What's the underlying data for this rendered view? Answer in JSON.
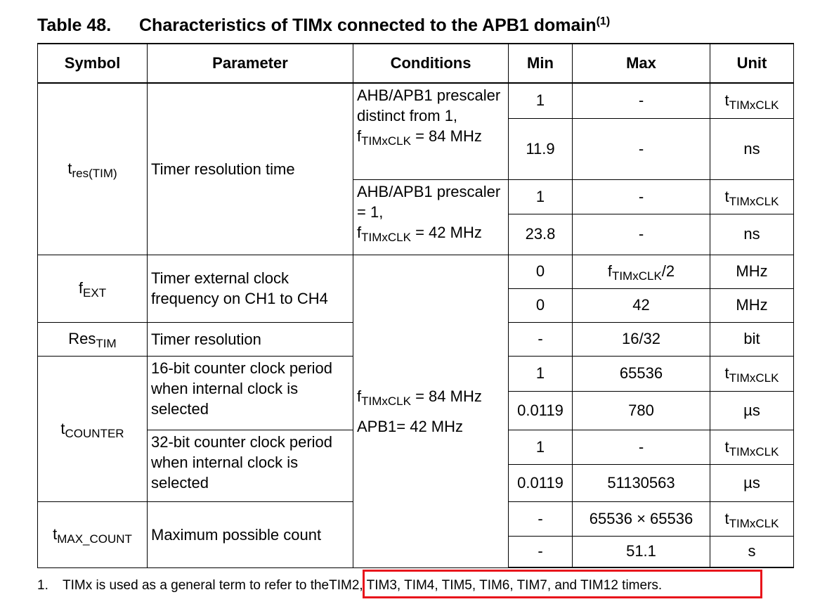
{
  "caption": {
    "number": "Table 48.",
    "title": "Characteristics of TIMx connected to the APB1 domain",
    "note_ref": "(1)"
  },
  "headers": {
    "symbol": "Symbol",
    "parameter": "Parameter",
    "conditions": "Conditions",
    "min": "Min",
    "max": "Max",
    "unit": "Unit"
  },
  "rows": {
    "tres": {
      "symbol": "t",
      "symbol_sub": "res(TIM)",
      "parameter": "Timer resolution time",
      "cond1_a": "AHB/APB1 prescaler distinct from 1, f",
      "cond1_sub": "TIMxCLK",
      "cond1_b": " = 84 MHz",
      "cond2_a": "AHB/APB1 prescaler = 1,",
      "cond2_f": "f",
      "cond2_sub": "TIMxCLK",
      "cond2_b": " = 42 MHz",
      "r1": {
        "min": "1",
        "max": "-",
        "unit": "t",
        "unit_sub": "TIMxCLK"
      },
      "r2": {
        "min": "11.9",
        "max": "-",
        "unit": "ns"
      },
      "r3": {
        "min": "1",
        "max": "-",
        "unit": "t",
        "unit_sub": "TIMxCLK"
      },
      "r4": {
        "min": "23.8",
        "max": "-",
        "unit": "ns"
      }
    },
    "fext": {
      "symbol": "f",
      "symbol_sub": "EXT",
      "parameter": "Timer external clock frequency on CH1 to CH4",
      "r1": {
        "min": "0",
        "max": "f",
        "max_sub": "TIMxCLK",
        "max_tail": "/2",
        "unit": "MHz"
      },
      "r2": {
        "min": "0",
        "max": "42",
        "unit": "MHz"
      }
    },
    "restim": {
      "symbol": "Res",
      "symbol_sub": "TIM",
      "parameter": "Timer resolution",
      "min": "-",
      "max": "16/32",
      "unit": "bit"
    },
    "shared_conditions": {
      "line1": "f",
      "line1_sub": "TIMxCLK",
      "line1_tail": " = 84 MHz",
      "line2": "APB1= 42 MHz"
    },
    "tcounter": {
      "symbol": "t",
      "symbol_sub": "COUNTER",
      "param16": "16-bit counter clock period when internal clock is selected",
      "param32": "32-bit counter clock period when internal clock is selected",
      "r1": {
        "min": "1",
        "max": "65536",
        "unit": "t",
        "unit_sub": "TIMxCLK"
      },
      "r2": {
        "min": "0.0119",
        "max": "780",
        "unit": "µs"
      },
      "r3": {
        "min": "1",
        "max": "-",
        "unit": "t",
        "unit_sub": "TIMxCLK"
      },
      "r4": {
        "min": "0.0119",
        "max": "51130563",
        "unit": "µs"
      }
    },
    "tmax": {
      "symbol": "t",
      "symbol_sub": "MAX_COUNT",
      "parameter": "Maximum possible count",
      "r1": {
        "min": "-",
        "max": "65536 × 65536",
        "unit": "t",
        "unit_sub": "TIMxCLK"
      },
      "r2": {
        "min": "-",
        "max": "51.1",
        "unit": "s"
      }
    }
  },
  "footnote": {
    "number": "1.",
    "text_a": "TIMx is used as a general term to refer to the",
    "text_b": "TIM2, TIM3, TIM4, TIM5, TIM6, TIM7, and TIM12 timers."
  },
  "highlight_color": "#e8141b"
}
